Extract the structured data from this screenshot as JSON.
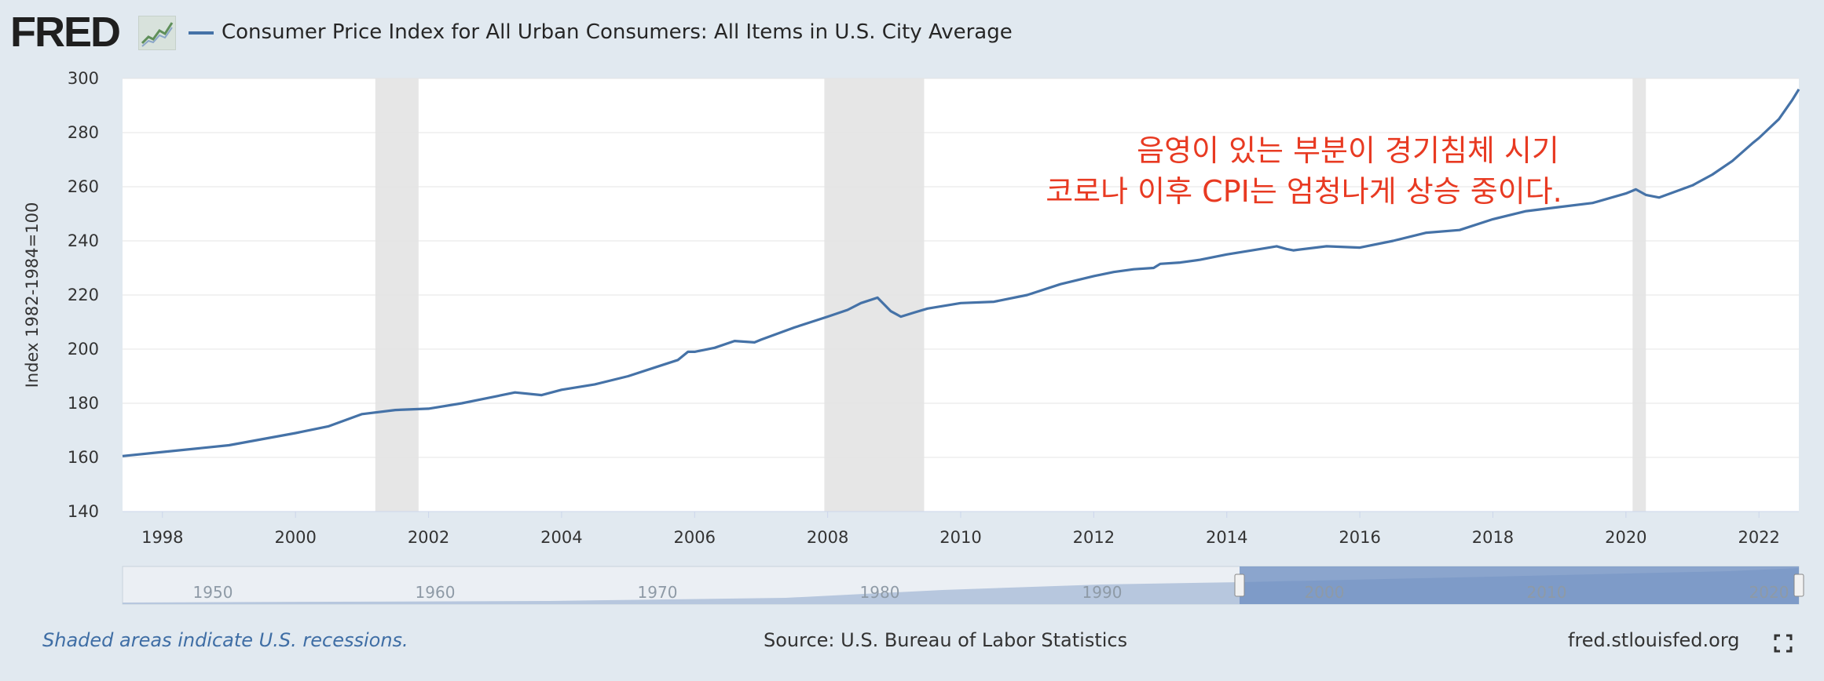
{
  "header": {
    "logo_text": "FRED",
    "series_title": "Consumer Price Index for All Urban Consumers: All Items in U.S. City Average",
    "series_color": "#4572a7"
  },
  "footer": {
    "note": "Shaded areas indicate U.S. recessions.",
    "source": "Source: U.S. Bureau of Labor Statistics",
    "site": "fred.stlouisfed.org",
    "fullscreen_icon": "fullscreen-icon"
  },
  "chart_data": {
    "type": "line",
    "ylabel": "Index 1982-1984=100",
    "xlim": [
      1997.4,
      2022.6
    ],
    "ylim": [
      140,
      300
    ],
    "xticks": [
      "1998",
      "2000",
      "2002",
      "2004",
      "2006",
      "2008",
      "2010",
      "2012",
      "2014",
      "2016",
      "2018",
      "2020",
      "2022"
    ],
    "yticks": [
      "140",
      "160",
      "180",
      "200",
      "220",
      "240",
      "260",
      "280",
      "300"
    ],
    "grid": true,
    "recessions": [
      [
        2001.2,
        2001.85
      ],
      [
        2007.95,
        2009.45
      ],
      [
        2020.1,
        2020.3
      ]
    ],
    "annotation": [
      "음영이 있는 부분이 경기침체 시기",
      "코로나 이후 CPI는 엄청나게 상승 중이다."
    ],
    "annotation_color": "#e83a22",
    "series": [
      {
        "name": "Consumer Price Index for All Urban Consumers: All Items in U.S. City Average",
        "color": "#4572a7",
        "x": [
          1997.4,
          1998,
          1999,
          2000,
          2000.5,
          2001,
          2001.5,
          2002,
          2002.5,
          2003,
          2003.3,
          2003.7,
          2004,
          2004.5,
          2005,
          2005.5,
          2005.75,
          2005.9,
          2006,
          2006.3,
          2006.6,
          2006.9,
          2007,
          2007.5,
          2008,
          2008.3,
          2008.5,
          2008.75,
          2008.95,
          2009.1,
          2009.3,
          2009.5,
          2010,
          2010.5,
          2011,
          2011.5,
          2012,
          2012.3,
          2012.6,
          2012.9,
          2013,
          2013.3,
          2013.6,
          2014,
          2014.5,
          2014.75,
          2014.9,
          2015,
          2015.5,
          2016,
          2016.5,
          2017,
          2017.5,
          2018,
          2018.5,
          2019,
          2019.5,
          2020,
          2020.15,
          2020.3,
          2020.5,
          2021,
          2021.3,
          2021.6,
          2021.9,
          2022,
          2022.3,
          2022.5,
          2022.6
        ],
        "values": [
          160.5,
          162,
          164.5,
          169,
          171.5,
          176,
          177.5,
          178,
          180,
          182.5,
          184,
          183,
          185,
          187,
          190,
          194,
          196,
          199,
          199,
          200.5,
          203,
          202.5,
          203.5,
          208,
          212,
          214.5,
          217,
          219,
          214,
          212,
          213.5,
          215,
          217,
          217.5,
          220,
          224,
          227,
          228.5,
          229.5,
          230,
          231.5,
          232,
          233,
          235,
          237,
          238,
          237,
          236.5,
          238,
          237.5,
          240,
          243,
          244,
          248,
          251,
          252.5,
          254,
          257.5,
          259,
          257,
          256,
          260.5,
          264.5,
          269.5,
          276,
          278,
          285,
          292,
          296
        ]
      }
    ],
    "navigator": {
      "xticks": [
        "1950",
        "1960",
        "1970",
        "1980",
        "1990",
        "2000",
        "2010",
        "2020"
      ]
    }
  }
}
